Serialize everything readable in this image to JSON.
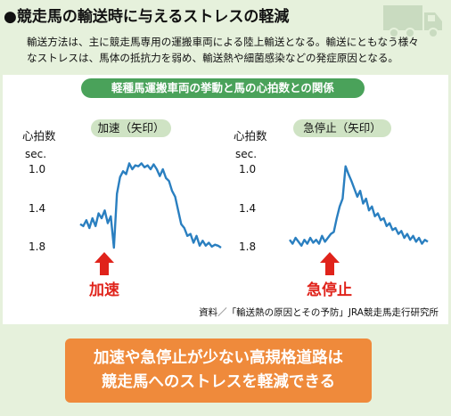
{
  "title": "●競走馬の輸送時に与えるストレスの軽減",
  "description": "輸送方法は、主に競走馬専用の運搬車両による陸上輸送となる。輸送にともなう様々なストレスは、馬体の抵抗力を弱め、輸送熱や細菌感染などの発症原因となる。",
  "source": "資料／「輸送熱の原因とその予防」JRA競走馬走行研究所",
  "banner": {
    "line1": "加速や急停止が少ない高規格道路は",
    "line2": "競走馬へのストレスを軽減できる"
  },
  "colors": {
    "line": "#2a7fc0",
    "arrow": "#e0231b",
    "banner": "#ef8a3b",
    "panel_title": "#4aa25a",
    "bubble": "#cfe3c4"
  },
  "icon": "truck-icon",
  "chart_data": {
    "title": "軽種馬運搬車両の挙動と馬の心拍数との関係",
    "type": "line",
    "panels": [
      {
        "label": "加速（矢印）",
        "event": "加速",
        "ylabel": "心拍数",
        "yunit": "sec.",
        "yticks": [
          "1.0",
          "1.4",
          "1.8"
        ],
        "ylim": [
          1.8,
          1.0
        ],
        "inverted": true,
        "event_index": 11,
        "values": [
          1.56,
          1.58,
          1.52,
          1.6,
          1.5,
          1.58,
          1.45,
          1.5,
          1.42,
          1.55,
          1.48,
          1.8,
          1.25,
          1.08,
          1.02,
          1.05,
          0.94,
          1.0,
          0.96,
          0.97,
          0.94,
          0.98,
          0.96,
          1.0,
          0.95,
          1.0,
          1.07,
          1.0,
          1.09,
          1.12,
          1.22,
          1.28,
          1.42,
          1.56,
          1.6,
          1.68,
          1.66,
          1.75,
          1.68,
          1.78,
          1.73,
          1.78,
          1.75,
          1.79,
          1.77,
          1.78,
          1.8
        ]
      },
      {
        "label": "急停止（矢印）",
        "event": "急停止",
        "ylabel": "心拍数",
        "yunit": "sec.",
        "yticks": [
          "1.0",
          "1.4",
          "1.8"
        ],
        "ylim": [
          1.8,
          1.0
        ],
        "inverted": true,
        "event_index": 15,
        "values": [
          1.72,
          1.76,
          1.7,
          1.74,
          1.78,
          1.72,
          1.76,
          1.7,
          1.75,
          1.72,
          1.76,
          1.68,
          1.74,
          1.7,
          1.66,
          1.64,
          1.5,
          1.38,
          1.3,
          0.97,
          1.05,
          1.12,
          1.2,
          1.28,
          1.22,
          1.35,
          1.3,
          1.42,
          1.38,
          1.48,
          1.45,
          1.52,
          1.5,
          1.58,
          1.55,
          1.62,
          1.6,
          1.66,
          1.63,
          1.7,
          1.66,
          1.72,
          1.68,
          1.74,
          1.7,
          1.76,
          1.72,
          1.74
        ]
      }
    ]
  }
}
